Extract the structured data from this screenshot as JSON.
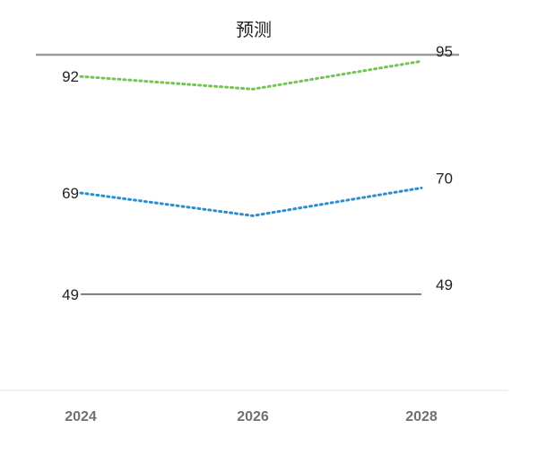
{
  "chart_data": {
    "type": "line",
    "title": "预测",
    "xlabel": "",
    "ylabel": "",
    "categories": [
      "2024",
      "2026",
      "2028"
    ],
    "ylim": [
      38,
      100
    ],
    "grid": false,
    "series": [
      {
        "values": [
          92,
          89.5,
          95
        ],
        "color": "#77c35a",
        "line_style": "dotted",
        "labels": [
          "92",
          null,
          "95"
        ]
      },
      {
        "values": [
          69,
          64.5,
          70
        ],
        "color": "#2a8fd0",
        "line_style": "dotted",
        "labels": [
          "69",
          null,
          "70"
        ]
      },
      {
        "values": [
          49,
          49,
          49
        ],
        "color": "#333333",
        "line_style": "solid",
        "labels": [
          "49",
          null,
          "49"
        ]
      }
    ]
  }
}
